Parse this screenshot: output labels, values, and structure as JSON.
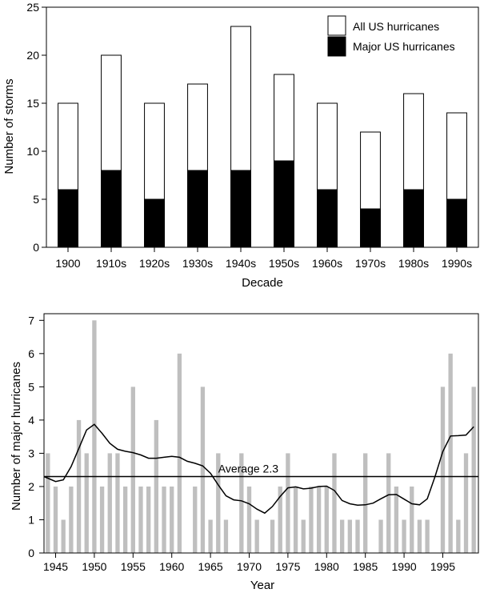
{
  "chart_data": [
    {
      "type": "bar",
      "xlabel": "Decade",
      "ylabel": "Number of storms",
      "ylim": [
        0,
        25
      ],
      "yticks": [
        0,
        5,
        10,
        15,
        20,
        25
      ],
      "categories": [
        "1900",
        "1910s",
        "1920s",
        "1930s",
        "1940s",
        "1950s",
        "1960s",
        "1970s",
        "1980s",
        "1990s"
      ],
      "series": [
        {
          "name": "All US hurricanes",
          "values": [
            15,
            20,
            15,
            17,
            23,
            18,
            15,
            12,
            16,
            14
          ],
          "color": "#ffffff"
        },
        {
          "name": "Major US hurricanes",
          "values": [
            6,
            8,
            5,
            8,
            8,
            9,
            6,
            4,
            6,
            5
          ],
          "color": "#000000"
        }
      ],
      "grid": false,
      "legend": "top-right"
    },
    {
      "type": "bar",
      "xlabel": "Year",
      "ylabel": "Number of major hurricanes",
      "ylim": [
        0,
        7.2
      ],
      "yticks": [
        0,
        1,
        2,
        3,
        4,
        5,
        6,
        7
      ],
      "xlim": [
        1943.5,
        1999.6
      ],
      "xticks": [
        1945,
        1950,
        1955,
        1960,
        1965,
        1970,
        1975,
        1980,
        1985,
        1990,
        1995
      ],
      "bar_color": "#bfbfbf",
      "x": [
        1944,
        1945,
        1946,
        1947,
        1948,
        1949,
        1950,
        1951,
        1952,
        1953,
        1954,
        1955,
        1956,
        1957,
        1958,
        1959,
        1960,
        1961,
        1962,
        1963,
        1964,
        1965,
        1966,
        1967,
        1968,
        1969,
        1970,
        1971,
        1972,
        1973,
        1974,
        1975,
        1976,
        1977,
        1978,
        1979,
        1980,
        1981,
        1982,
        1983,
        1984,
        1985,
        1986,
        1987,
        1988,
        1989,
        1990,
        1991,
        1992,
        1993,
        1994,
        1995,
        1996,
        1997,
        1998,
        1999
      ],
      "values": [
        3,
        2,
        1,
        2,
        4,
        3,
        7,
        2,
        3,
        3,
        2,
        5,
        2,
        2,
        4,
        2,
        2,
        6,
        0,
        2,
        5,
        1,
        3,
        1,
        0,
        3,
        2,
        1,
        0,
        1,
        2,
        3,
        2,
        1,
        2,
        2,
        2,
        3,
        1,
        1,
        1,
        3,
        0,
        1,
        3,
        2,
        1,
        2,
        1,
        1,
        0,
        5,
        6,
        1,
        3,
        5
      ],
      "smooth": {
        "x": [
          1943.5,
          1945,
          1946,
          1947,
          1948,
          1949,
          1950,
          1951,
          1952,
          1953,
          1954,
          1955,
          1956,
          1957,
          1958,
          1959,
          1960,
          1961,
          1962,
          1963,
          1964,
          1965,
          1966,
          1967,
          1968,
          1969,
          1970,
          1971,
          1972,
          1973,
          1974,
          1975,
          1976,
          1977,
          1978,
          1979,
          1980,
          1981,
          1982,
          1983,
          1984,
          1985,
          1986,
          1987,
          1988,
          1989,
          1990,
          1991,
          1992,
          1993,
          1994,
          1995,
          1996,
          1997,
          1998,
          1999
        ],
        "y": [
          2.3,
          2.15,
          2.2,
          2.6,
          3.15,
          3.7,
          3.87,
          3.6,
          3.3,
          3.12,
          3.06,
          3.02,
          2.95,
          2.85,
          2.85,
          2.88,
          2.91,
          2.88,
          2.76,
          2.7,
          2.62,
          2.4,
          2.05,
          1.72,
          1.6,
          1.57,
          1.48,
          1.32,
          1.2,
          1.4,
          1.7,
          1.96,
          1.99,
          1.93,
          1.95,
          2.0,
          2.01,
          1.88,
          1.58,
          1.48,
          1.44,
          1.45,
          1.5,
          1.63,
          1.75,
          1.76,
          1.62,
          1.48,
          1.45,
          1.63,
          2.3,
          3.05,
          3.52,
          3.53,
          3.55,
          3.8
        ]
      },
      "reference_line": {
        "value": 2.3,
        "label": "Average 2.3"
      },
      "grid": false
    }
  ]
}
